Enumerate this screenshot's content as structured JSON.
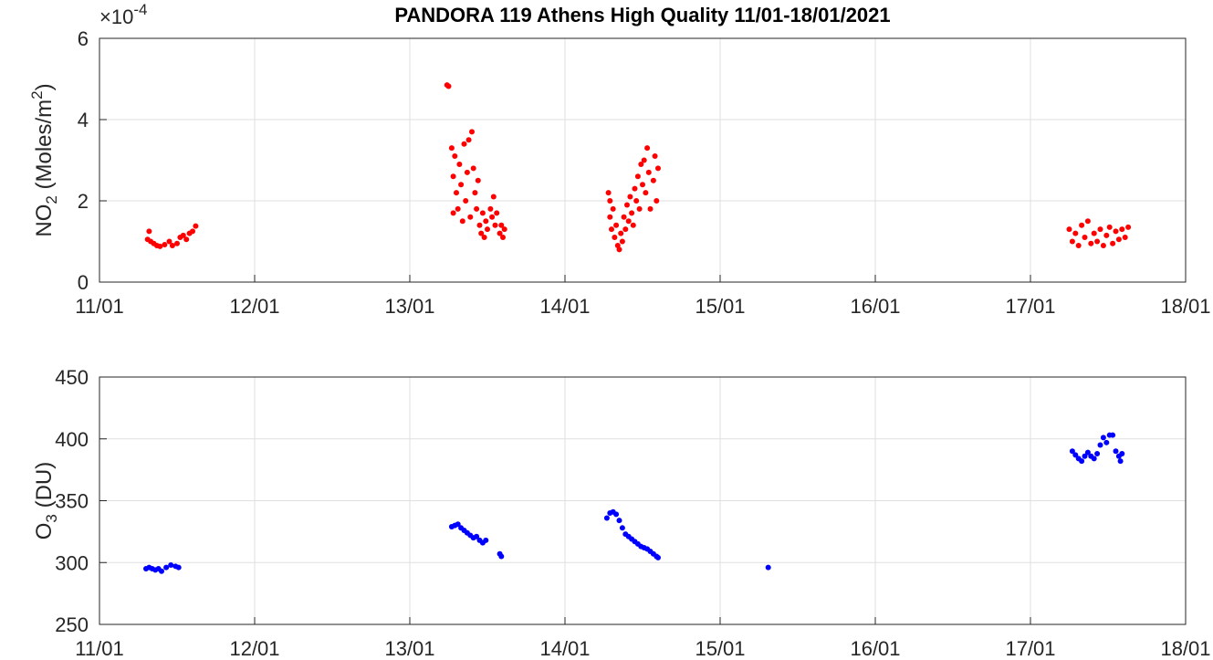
{
  "chart_data": [
    {
      "type": "scatter",
      "title": "PANDORA 119 Athens High Quality 11/01-18/01/2021",
      "ylabel": [
        "NO",
        "2",
        " (Moles/m",
        "2",
        ")"
      ],
      "yexponent": [
        "×10",
        "-4"
      ],
      "color": "#ff0000",
      "grid": true,
      "xlim": [
        11,
        18
      ],
      "ylim": [
        0,
        6
      ],
      "yticks": [
        0,
        2,
        4,
        6
      ],
      "xticks": [
        {
          "value": 11,
          "label": "11/01"
        },
        {
          "value": 12,
          "label": "12/01"
        },
        {
          "value": 13,
          "label": "13/01"
        },
        {
          "value": 14,
          "label": "14/01"
        },
        {
          "value": 15,
          "label": "15/01"
        },
        {
          "value": 16,
          "label": "16/01"
        },
        {
          "value": 17,
          "label": "17/01"
        },
        {
          "value": 18,
          "label": "18/01"
        }
      ],
      "x": [
        11.31,
        11.32,
        11.33,
        11.35,
        11.37,
        11.39,
        11.42,
        11.45,
        11.47,
        11.5,
        11.52,
        11.54,
        11.56,
        11.58,
        11.6,
        11.62,
        13.24,
        13.25,
        13.27,
        13.28,
        13.28,
        13.29,
        13.3,
        13.31,
        13.32,
        13.33,
        13.34,
        13.35,
        13.36,
        13.37,
        13.38,
        13.39,
        13.4,
        13.41,
        13.42,
        13.43,
        13.44,
        13.45,
        13.46,
        13.47,
        13.48,
        13.49,
        13.5,
        13.52,
        13.53,
        13.54,
        13.55,
        13.56,
        13.58,
        13.59,
        13.6,
        13.61,
        14.28,
        14.29,
        14.29,
        14.3,
        14.31,
        14.32,
        14.33,
        14.34,
        14.35,
        14.36,
        14.37,
        14.38,
        14.39,
        14.4,
        14.41,
        14.42,
        14.43,
        14.44,
        14.45,
        14.46,
        14.47,
        14.48,
        14.49,
        14.5,
        14.51,
        14.52,
        14.53,
        14.54,
        14.55,
        14.57,
        14.58,
        14.59,
        14.6,
        17.25,
        17.27,
        17.29,
        17.31,
        17.33,
        17.35,
        17.37,
        17.39,
        17.41,
        17.43,
        17.45,
        17.47,
        17.49,
        17.51,
        17.53,
        17.55,
        17.57,
        17.59,
        17.61,
        17.63
      ],
      "values": [
        1.05,
        1.25,
        1.0,
        0.95,
        0.9,
        0.88,
        0.92,
        1.0,
        0.9,
        0.95,
        1.1,
        1.15,
        1.05,
        1.2,
        1.25,
        1.38,
        4.85,
        4.82,
        3.3,
        1.7,
        2.6,
        3.1,
        2.2,
        1.8,
        2.9,
        2.4,
        1.5,
        3.4,
        2.0,
        2.7,
        3.5,
        1.6,
        3.7,
        2.8,
        2.2,
        1.8,
        2.5,
        1.4,
        1.2,
        1.7,
        1.1,
        1.5,
        1.3,
        1.8,
        1.6,
        2.1,
        1.4,
        1.7,
        1.2,
        1.4,
        1.1,
        1.3,
        2.2,
        1.6,
        2.0,
        1.3,
        1.8,
        1.1,
        1.4,
        0.9,
        0.8,
        1.2,
        1.0,
        1.6,
        1.3,
        1.9,
        1.5,
        2.1,
        1.7,
        1.4,
        2.3,
        2.0,
        2.6,
        1.8,
        2.9,
        2.4,
        3.0,
        2.2,
        3.3,
        2.7,
        1.8,
        2.5,
        3.1,
        2.0,
        2.8,
        1.3,
        1.0,
        1.2,
        0.9,
        1.4,
        1.1,
        1.5,
        0.95,
        1.2,
        1.0,
        1.3,
        0.9,
        1.15,
        1.35,
        0.95,
        1.25,
        1.05,
        1.3,
        1.1,
        1.35
      ]
    },
    {
      "type": "scatter",
      "ylabel": [
        "O",
        "3",
        " (DU)"
      ],
      "color": "#0000ff",
      "grid": true,
      "xlim": [
        11,
        18
      ],
      "ylim": [
        250,
        450
      ],
      "yticks": [
        250,
        300,
        350,
        400,
        450
      ],
      "xticks": [
        {
          "value": 11,
          "label": "11/01"
        },
        {
          "value": 12,
          "label": "12/01"
        },
        {
          "value": 13,
          "label": "13/01"
        },
        {
          "value": 14,
          "label": "14/01"
        },
        {
          "value": 15,
          "label": "15/01"
        },
        {
          "value": 16,
          "label": "16/01"
        },
        {
          "value": 17,
          "label": "17/01"
        },
        {
          "value": 18,
          "label": "18/01"
        }
      ],
      "x": [
        11.3,
        11.32,
        11.34,
        11.36,
        11.38,
        11.4,
        11.43,
        11.46,
        11.49,
        11.51,
        13.27,
        13.29,
        13.31,
        13.33,
        13.35,
        13.37,
        13.39,
        13.41,
        13.43,
        13.45,
        13.47,
        13.49,
        13.58,
        13.59,
        14.27,
        14.29,
        14.31,
        14.33,
        14.35,
        14.37,
        14.39,
        14.41,
        14.43,
        14.45,
        14.47,
        14.49,
        14.51,
        14.53,
        14.55,
        14.57,
        14.59,
        14.6,
        15.31,
        17.27,
        17.29,
        17.31,
        17.33,
        17.35,
        17.37,
        17.39,
        17.41,
        17.43,
        17.45,
        17.47,
        17.49,
        17.51,
        17.53,
        17.55,
        17.57,
        17.58,
        17.59
      ],
      "values": [
        295,
        296,
        295,
        294,
        295,
        293,
        296,
        298,
        297,
        296,
        329,
        330,
        331,
        328,
        326,
        324,
        322,
        320,
        321,
        318,
        316,
        318,
        307,
        305,
        336,
        340,
        341,
        339,
        334,
        328,
        323,
        321,
        319,
        317,
        315,
        313,
        312,
        311,
        309,
        307,
        305,
        304,
        296,
        390,
        387,
        384,
        382,
        386,
        389,
        386,
        384,
        388,
        395,
        401,
        397,
        403,
        403,
        390,
        386,
        382,
        388
      ]
    }
  ]
}
